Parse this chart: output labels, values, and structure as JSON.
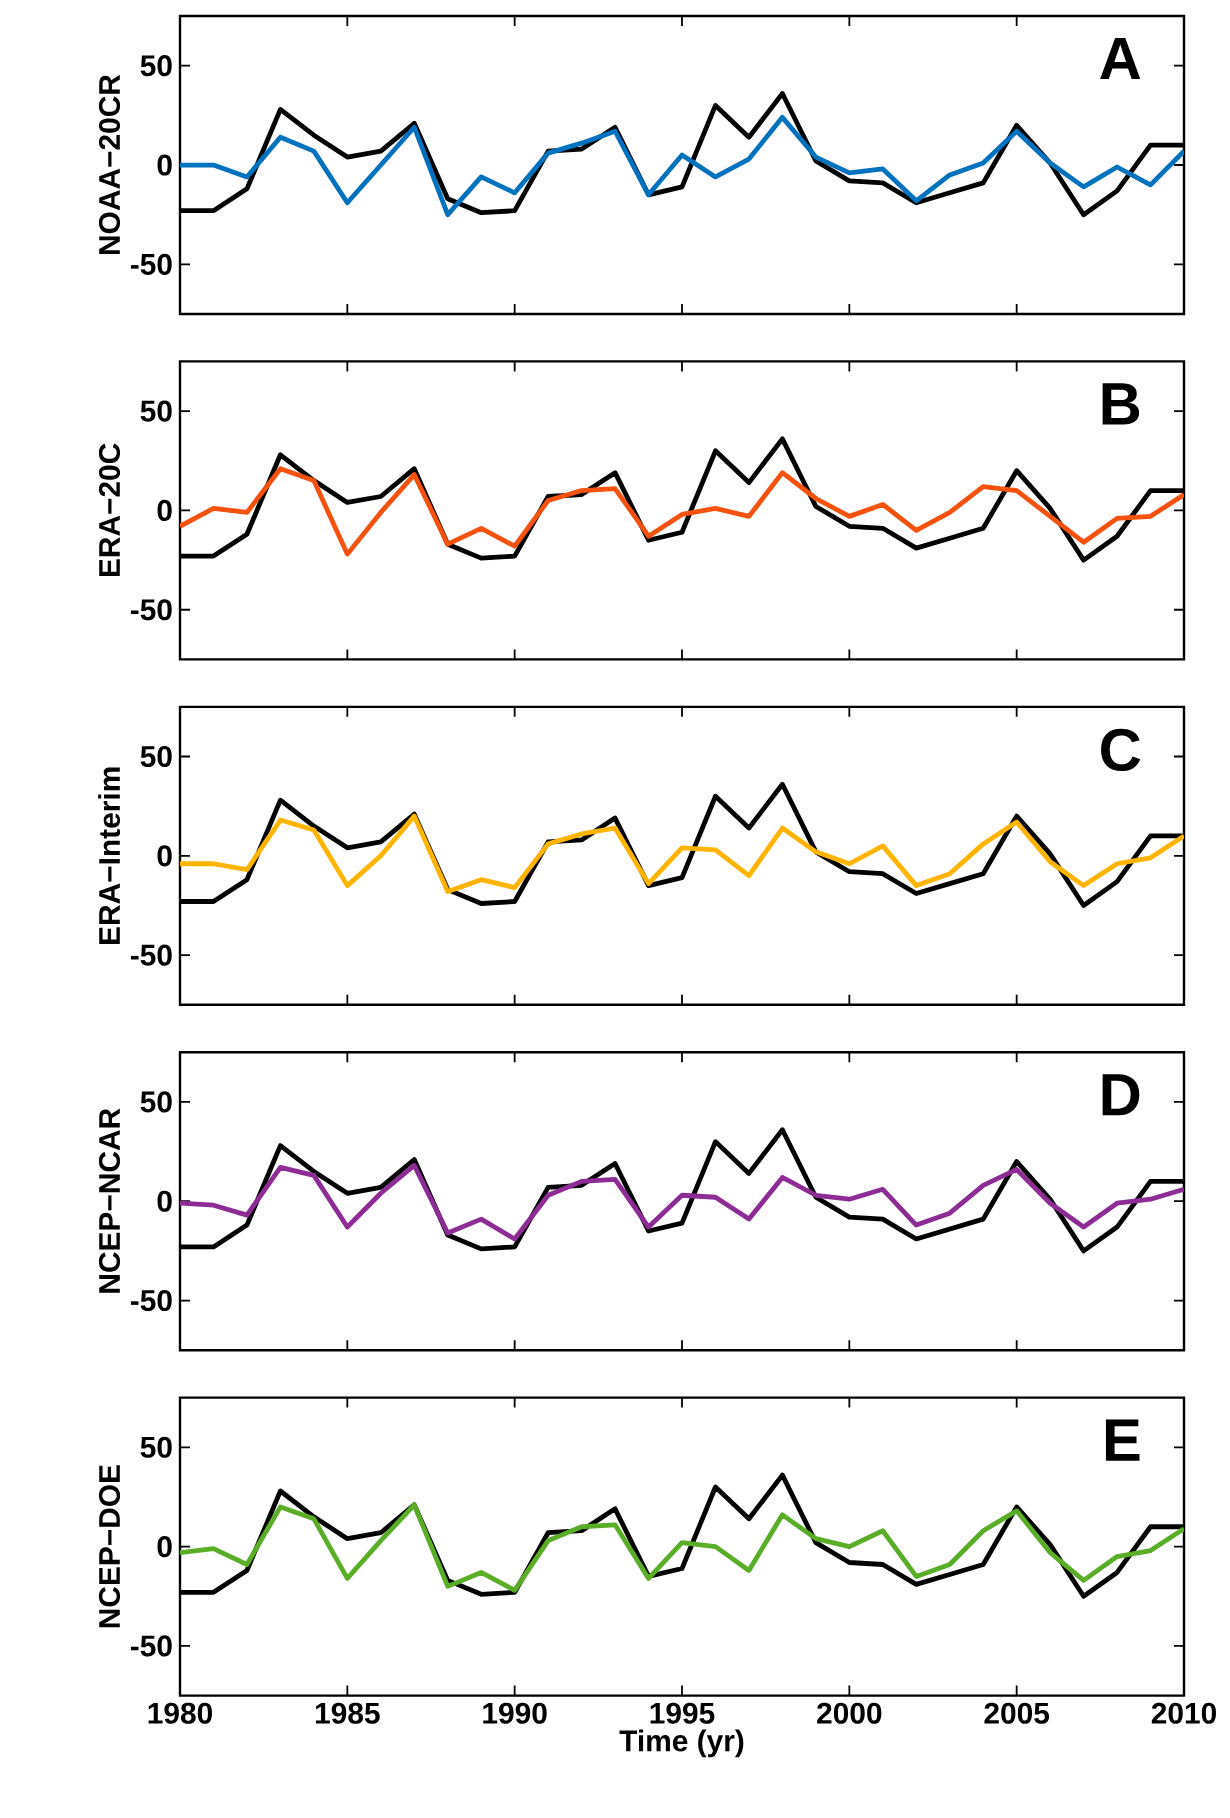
{
  "chart_data": [
    {
      "type": "line",
      "ylabel": "NOAA−20CR",
      "annotations": [
        "A"
      ],
      "tick_labels": "y",
      "xlim": [
        1980,
        2010
      ],
      "xticks": [
        1980,
        1985,
        1990,
        1995,
        2000,
        2005,
        2010
      ],
      "ylim": [
        -75,
        75
      ],
      "yticks": [
        -50,
        0,
        50
      ],
      "x": [
        1980,
        1981,
        1982,
        1983,
        1984,
        1985,
        1986,
        1987,
        1988,
        1989,
        1990,
        1991,
        1992,
        1993,
        1994,
        1995,
        1996,
        1997,
        1998,
        1999,
        2000,
        2001,
        2002,
        2003,
        2004,
        2005,
        2006,
        2007,
        2008,
        2009,
        2010
      ],
      "series": [
        {
          "color": "#000000",
          "values": [
            -23,
            -23,
            -12,
            28,
            15,
            4,
            7,
            21,
            -17,
            -24,
            -23,
            7,
            8,
            19,
            -15,
            -11,
            30,
            14,
            36,
            2,
            -8,
            -9,
            -19,
            -14,
            -9,
            20,
            1,
            -25,
            -13,
            10,
            10
          ]
        },
        {
          "color": "#0072bd",
          "values": [
            0,
            0,
            -6,
            14,
            7,
            -19,
            0,
            19,
            -25,
            -6,
            -14,
            6,
            11,
            17,
            -15,
            5,
            -6,
            3,
            24,
            4,
            -4,
            -2,
            -18,
            -5,
            1,
            17,
            1,
            -11,
            -1,
            -10,
            7
          ]
        }
      ]
    },
    {
      "type": "line",
      "ylabel": "ERA−20C",
      "annotations": [
        "B"
      ],
      "tick_labels": "y",
      "xlim": [
        1980,
        2010
      ],
      "xticks": [
        1980,
        1985,
        1990,
        1995,
        2000,
        2005,
        2010
      ],
      "ylim": [
        -75,
        75
      ],
      "yticks": [
        -50,
        0,
        50
      ],
      "x": [
        1980,
        1981,
        1982,
        1983,
        1984,
        1985,
        1986,
        1987,
        1988,
        1989,
        1990,
        1991,
        1992,
        1993,
        1994,
        1995,
        1996,
        1997,
        1998,
        1999,
        2000,
        2001,
        2002,
        2003,
        2004,
        2005,
        2006,
        2007,
        2008,
        2009,
        2010
      ],
      "series": [
        {
          "color": "#000000",
          "values": [
            -23,
            -23,
            -12,
            28,
            15,
            4,
            7,
            21,
            -17,
            -24,
            -23,
            7,
            8,
            19,
            -15,
            -11,
            30,
            14,
            36,
            2,
            -8,
            -9,
            -19,
            -14,
            -9,
            20,
            1,
            -25,
            -13,
            10,
            10
          ]
        },
        {
          "color": "#f5520f",
          "values": [
            -8,
            1,
            -1,
            21,
            15,
            -22,
            -1,
            18,
            -17,
            -9,
            -18,
            5,
            10,
            11,
            -13,
            -2,
            1,
            -3,
            19,
            6,
            -3,
            3,
            -10,
            -1,
            12,
            10,
            -3,
            -16,
            -4,
            -3,
            8
          ]
        }
      ]
    },
    {
      "type": "line",
      "ylabel": "ERA−Interim",
      "annotations": [
        "C"
      ],
      "tick_labels": "y",
      "xlim": [
        1980,
        2010
      ],
      "xticks": [
        1980,
        1985,
        1990,
        1995,
        2000,
        2005,
        2010
      ],
      "ylim": [
        -75,
        75
      ],
      "yticks": [
        -50,
        0,
        50
      ],
      "x": [
        1980,
        1981,
        1982,
        1983,
        1984,
        1985,
        1986,
        1987,
        1988,
        1989,
        1990,
        1991,
        1992,
        1993,
        1994,
        1995,
        1996,
        1997,
        1998,
        1999,
        2000,
        2001,
        2002,
        2003,
        2004,
        2005,
        2006,
        2007,
        2008,
        2009,
        2010
      ],
      "series": [
        {
          "color": "#000000",
          "values": [
            -23,
            -23,
            -12,
            28,
            15,
            4,
            7,
            21,
            -17,
            -24,
            -23,
            7,
            8,
            19,
            -15,
            -11,
            30,
            14,
            36,
            2,
            -8,
            -9,
            -19,
            -14,
            -9,
            20,
            1,
            -25,
            -13,
            10,
            10
          ]
        },
        {
          "color": "#ffb400",
          "values": [
            -4,
            -4,
            -7,
            18,
            13,
            -15,
            0,
            20,
            -18,
            -12,
            -16,
            6,
            11,
            14,
            -14,
            4,
            3,
            -10,
            14,
            2,
            -4,
            5,
            -15,
            -9,
            6,
            17,
            -3,
            -15,
            -4,
            -1,
            10
          ]
        }
      ]
    },
    {
      "type": "line",
      "ylabel": "NCEP−NCAR",
      "annotations": [
        "D"
      ],
      "tick_labels": "y",
      "xlim": [
        1980,
        2010
      ],
      "xticks": [
        1980,
        1985,
        1990,
        1995,
        2000,
        2005,
        2010
      ],
      "ylim": [
        -75,
        75
      ],
      "yticks": [
        -50,
        0,
        50
      ],
      "x": [
        1980,
        1981,
        1982,
        1983,
        1984,
        1985,
        1986,
        1987,
        1988,
        1989,
        1990,
        1991,
        1992,
        1993,
        1994,
        1995,
        1996,
        1997,
        1998,
        1999,
        2000,
        2001,
        2002,
        2003,
        2004,
        2005,
        2006,
        2007,
        2008,
        2009,
        2010
      ],
      "series": [
        {
          "color": "#000000",
          "values": [
            -23,
            -23,
            -12,
            28,
            15,
            4,
            7,
            21,
            -17,
            -24,
            -23,
            7,
            8,
            19,
            -15,
            -11,
            30,
            14,
            36,
            2,
            -8,
            -9,
            -19,
            -14,
            -9,
            20,
            1,
            -25,
            -13,
            10,
            10
          ]
        },
        {
          "color": "#8e2c95",
          "values": [
            -1,
            -2,
            -7,
            17,
            13,
            -13,
            4,
            18,
            -16,
            -9,
            -19,
            3,
            10,
            11,
            -13,
            3,
            2,
            -9,
            12,
            3,
            1,
            6,
            -12,
            -6,
            8,
            16,
            -1,
            -13,
            -1,
            1,
            6
          ]
        }
      ]
    },
    {
      "type": "line",
      "ylabel": "NCEP−DOE",
      "xlabel": "Time (yr)",
      "annotations": [
        "E"
      ],
      "xlim": [
        1980,
        2010
      ],
      "xticks": [
        1980,
        1985,
        1990,
        1995,
        2000,
        2005,
        2010
      ],
      "ylim": [
        -75,
        75
      ],
      "yticks": [
        -50,
        0,
        50
      ],
      "x": [
        1980,
        1981,
        1982,
        1983,
        1984,
        1985,
        1986,
        1987,
        1988,
        1989,
        1990,
        1991,
        1992,
        1993,
        1994,
        1995,
        1996,
        1997,
        1998,
        1999,
        2000,
        2001,
        2002,
        2003,
        2004,
        2005,
        2006,
        2007,
        2008,
        2009,
        2010
      ],
      "series": [
        {
          "color": "#000000",
          "values": [
            -23,
            -23,
            -12,
            28,
            15,
            4,
            7,
            21,
            -17,
            -24,
            -23,
            7,
            8,
            19,
            -15,
            -11,
            30,
            14,
            36,
            2,
            -8,
            -9,
            -19,
            -14,
            -9,
            20,
            1,
            -25,
            -13,
            10,
            10
          ]
        },
        {
          "color": "#5aae27",
          "values": [
            -3,
            -1,
            -9,
            20,
            14,
            -16,
            3,
            21,
            -20,
            -13,
            -22,
            3,
            10,
            11,
            -16,
            2,
            0,
            -12,
            16,
            4,
            0,
            8,
            -15,
            -9,
            8,
            18,
            -3,
            -17,
            -5,
            -2,
            9
          ]
        }
      ]
    }
  ]
}
